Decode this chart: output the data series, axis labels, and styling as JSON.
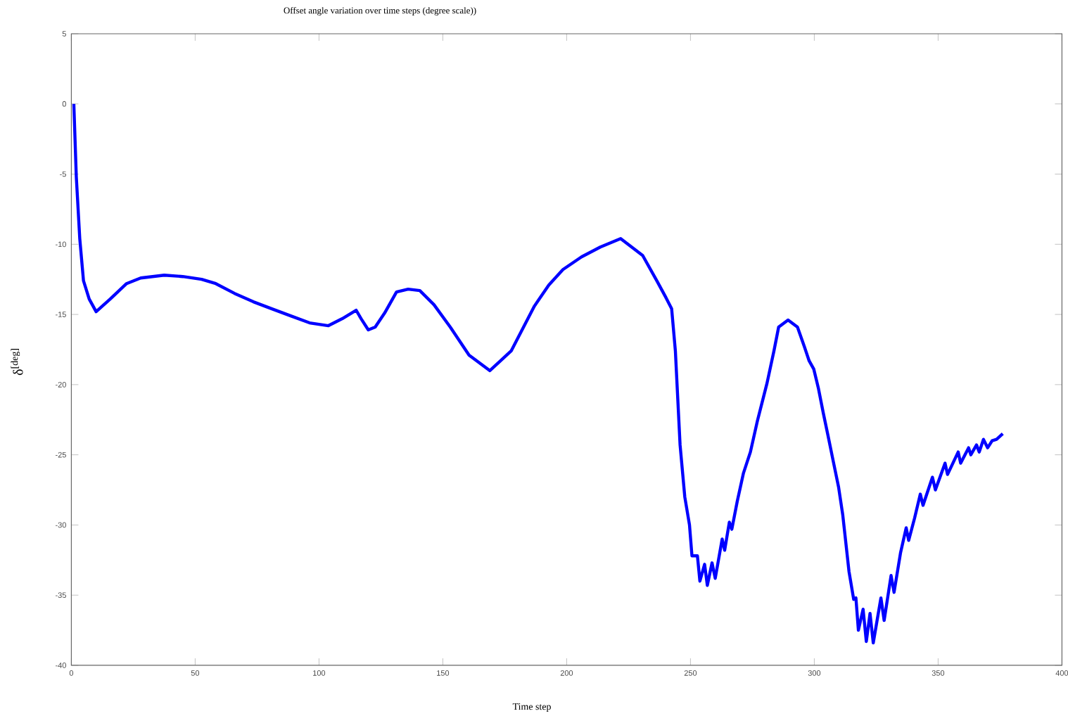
{
  "chart_data": {
    "type": "line",
    "title": "Offset angle variation over time steps (degree scale))",
    "xlabel": "Time step",
    "ylabel": "δ$^{[deg]}$",
    "xlim": [
      0,
      400
    ],
    "ylim": [
      -40,
      5
    ],
    "xticks": [
      0,
      50,
      100,
      150,
      200,
      250,
      300,
      350,
      400
    ],
    "yticks": [
      -40,
      -35,
      -30,
      -25,
      -20,
      -15,
      -10,
      -5,
      0,
      5
    ],
    "grid": false,
    "marker": "none",
    "line_style": "solid",
    "series": [
      {
        "color": "#0000ff",
        "x": [
          1,
          2,
          3.4,
          4.9,
          7.2,
          10,
          15.7,
          22.3,
          28,
          37.5,
          45,
          52.6,
          58.3,
          65.9,
          73.5,
          81,
          88.6,
          96.2,
          103.8,
          109.4,
          115,
          117,
          119.9,
          122.7,
          126.5,
          131.3,
          136,
          140.7,
          146.4,
          153,
          160.6,
          169,
          177.6,
          187,
          192.8,
          198.5,
          206,
          213.6,
          221.8,
          230.7,
          236.4,
          240.1,
          242.4,
          243.9,
          245.8,
          247.7,
          249.6,
          250.6,
          252.8,
          253.8,
          255.7,
          256.8,
          258.7,
          260,
          262.8,
          263.8,
          265.7,
          266.7,
          268.9,
          271.4,
          274.2,
          277,
          280.9,
          283.7,
          285.6,
          289.4,
          293.2,
          296,
          297.9,
          299.8,
          301.7,
          303.6,
          305.5,
          307.7,
          309.8,
          311.5,
          314,
          315.9,
          316.8,
          317.8,
          319.7,
          321,
          322.5,
          323.8,
          326.9,
          328.2,
          331,
          332.2,
          334.8,
          337.1,
          338.1,
          340.5,
          342.8,
          343.9,
          347.7,
          348.9,
          352.8,
          353.8,
          358.1,
          359.1,
          362.3,
          363.2,
          365.5,
          366.6,
          368.3,
          370,
          371.8,
          373.6,
          376.1
        ],
        "values": [
          0,
          -5.2,
          -9.6,
          -12.6,
          -13.9,
          -14.8,
          -13.9,
          -12.8,
          -12.4,
          -12.2,
          -12.3,
          -12.5,
          -12.8,
          -13.5,
          -14.1,
          -14.6,
          -15.1,
          -15.6,
          -15.8,
          -15.3,
          -14.7,
          -15.3,
          -16.1,
          -15.9,
          -14.9,
          -13.4,
          -13.2,
          -13.3,
          -14.3,
          -15.9,
          -17.9,
          -19,
          -17.6,
          -14.4,
          -12.9,
          -11.8,
          -10.9,
          -10.2,
          -9.6,
          -10.8,
          -12.6,
          -13.8,
          -14.6,
          -17.6,
          -24.3,
          -28,
          -30,
          -32.2,
          -32.2,
          -34,
          -32.8,
          -34.3,
          -32.7,
          -33.8,
          -31,
          -31.8,
          -29.8,
          -30.3,
          -28.3,
          -26.3,
          -24.8,
          -22.6,
          -19.9,
          -17.6,
          -15.9,
          -15.4,
          -15.9,
          -17.3,
          -18.3,
          -18.9,
          -20.3,
          -22,
          -23.6,
          -25.5,
          -27.3,
          -29.3,
          -33.3,
          -35.3,
          -35.2,
          -37.5,
          -36,
          -38.3,
          -36.3,
          -38.4,
          -35.2,
          -36.8,
          -33.6,
          -34.8,
          -32,
          -30.2,
          -31.1,
          -29.5,
          -27.8,
          -28.6,
          -26.6,
          -27.5,
          -25.6,
          -26.4,
          -24.8,
          -25.6,
          -24.5,
          -25,
          -24.3,
          -24.8,
          -23.9,
          -24.5,
          -24,
          -23.9,
          -23.5
        ]
      }
    ]
  }
}
